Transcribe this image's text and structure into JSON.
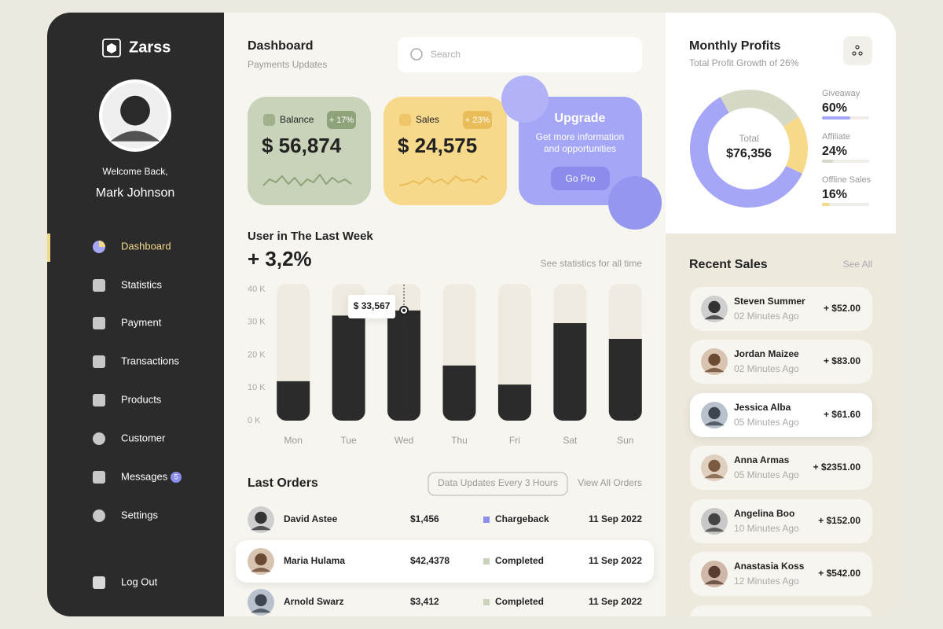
{
  "sidebar": {
    "brand": "Zarss",
    "welcome": "Welcome Back,",
    "user_name": "Mark Johnson",
    "nav": [
      "Dashboard",
      "Statistics",
      "Payment",
      "Transactions",
      "Products",
      "Customer",
      "Messages",
      "Settings"
    ],
    "messages_badge": 5,
    "logout": "Log Out"
  },
  "header": {
    "title": "Dashboard",
    "subtitle": "Payments Updates",
    "search_placeholder": "Search"
  },
  "stat_cards": [
    {
      "label": "Balance",
      "change": "+ 17%",
      "amount": "$ 56,874"
    },
    {
      "label": "Sales",
      "change": "+ 23%",
      "amount": "$ 24,575"
    }
  ],
  "upgrade": {
    "title": "Upgrade",
    "text_lines": [
      "Get more information",
      "and opportunities"
    ],
    "button": "Go Pro"
  },
  "chart_data": [
    {
      "type": "bar",
      "title": "User in The Last Week",
      "headline": "+ 3,2%",
      "link": "See statistics for all time",
      "categories": [
        "Mon",
        "Tue",
        "Wed",
        "Thu",
        "Fri",
        "Sat",
        "Sun"
      ],
      "values": [
        12000,
        32000,
        33567,
        16800,
        11000,
        29700,
        24900
      ],
      "value_labels": [
        null,
        null,
        "$ 33,567",
        null,
        null,
        null,
        null
      ],
      "ylim": [
        0,
        40000
      ],
      "yticks": [
        {
          "value": 0,
          "label": "0 K"
        },
        {
          "value": 10000,
          "label": "10 K"
        },
        {
          "value": 20000,
          "label": "20 K"
        },
        {
          "value": 30000,
          "label": "30 K"
        },
        {
          "value": 40000,
          "label": "40 K"
        }
      ],
      "color": "#2b2b2b"
    },
    {
      "type": "pie",
      "title": "Monthly Profits",
      "subtitle": "Total Profit Growth of 26%",
      "center_label": "Total",
      "center_value": "$76,356",
      "categories": [
        "Giveaway",
        "Affiliate",
        "Offline Sales"
      ],
      "values": [
        60,
        24,
        16
      ],
      "value_labels": [
        "60%",
        "24%",
        "16%"
      ],
      "colors": [
        "#a5a6f6",
        "#d5d9c5",
        "#f7d98a"
      ]
    }
  ],
  "orders": {
    "title": "Last Orders",
    "note": "Data Updates Every 3 Hours",
    "link": "View All Orders",
    "rows": [
      [
        "David Astee",
        "$1,456",
        "Chargeback",
        "11 Sep 2022"
      ],
      [
        "Maria Hulama",
        "$42,4378",
        "Completed",
        "11 Sep 2022"
      ],
      [
        "Arnold Swarz",
        "$3,412",
        "Completed",
        "11 Sep 2022"
      ]
    ]
  },
  "recent_sales": {
    "title": "Recent Sales",
    "link": "See All",
    "items": [
      {
        "name": "Steven Summer",
        "time": "02 Minutes Ago",
        "amount": "+ $52.00"
      },
      {
        "name": "Jordan Maizee",
        "time": "02 Minutes Ago",
        "amount": "+ $83.00"
      },
      {
        "name": "Jessica Alba",
        "time": "05 Minutes Ago",
        "amount": "+ $61.60"
      },
      {
        "name": "Anna Armas",
        "time": "05 Minutes Ago",
        "amount": "+ $2351.00"
      },
      {
        "name": "Angelina Boo",
        "time": "10 Minutes Ago",
        "amount": "+ $152.00"
      },
      {
        "name": "Anastasia Koss",
        "time": "12 Minutes Ago",
        "amount": "+ $542.00"
      }
    ]
  }
}
